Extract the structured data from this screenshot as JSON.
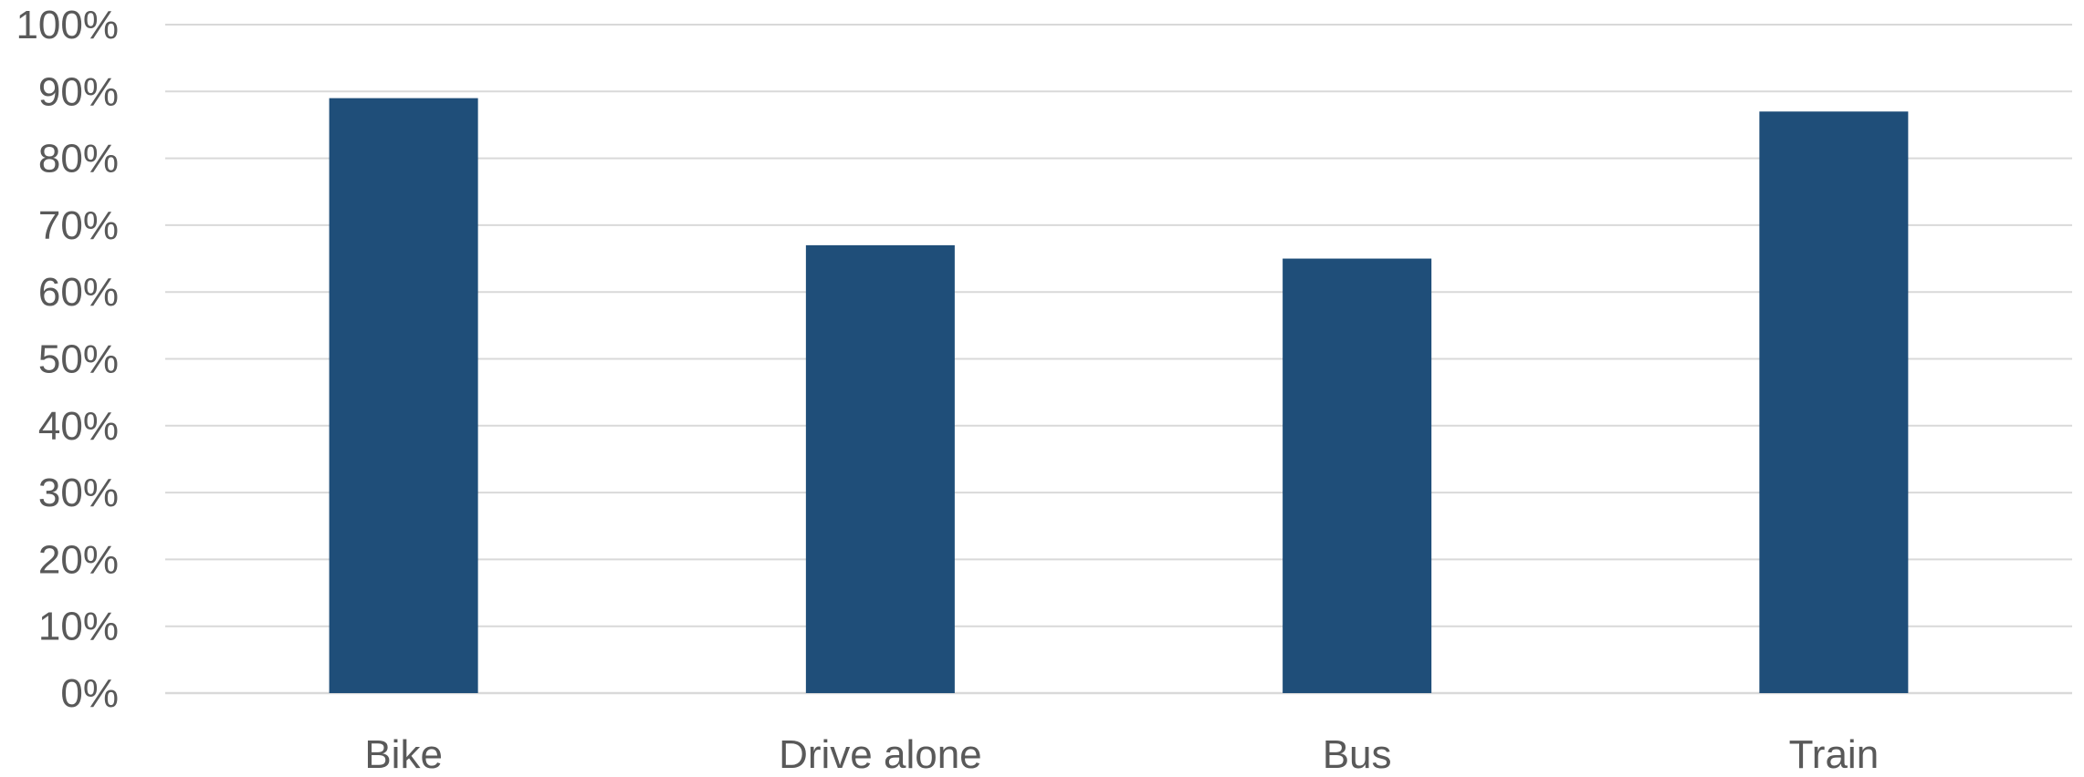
{
  "chart_data": {
    "type": "bar",
    "categories": [
      "Bike",
      "Drive alone",
      "Bus",
      "Train"
    ],
    "values": [
      89,
      67,
      65,
      87
    ],
    "y_tick_labels": [
      "0%",
      "10%",
      "20%",
      "30%",
      "40%",
      "50%",
      "60%",
      "70%",
      "80%",
      "90%",
      "100%"
    ],
    "y_ticks": [
      0,
      10,
      20,
      30,
      40,
      50,
      60,
      70,
      80,
      90,
      100
    ],
    "ylim": [
      0,
      100
    ],
    "title": "",
    "xlabel": "",
    "ylabel": "",
    "grid": true,
    "legend": "none",
    "colors": {
      "bar": "#1f4e79",
      "grid": "#d9d9d9",
      "text": "#595959"
    }
  }
}
